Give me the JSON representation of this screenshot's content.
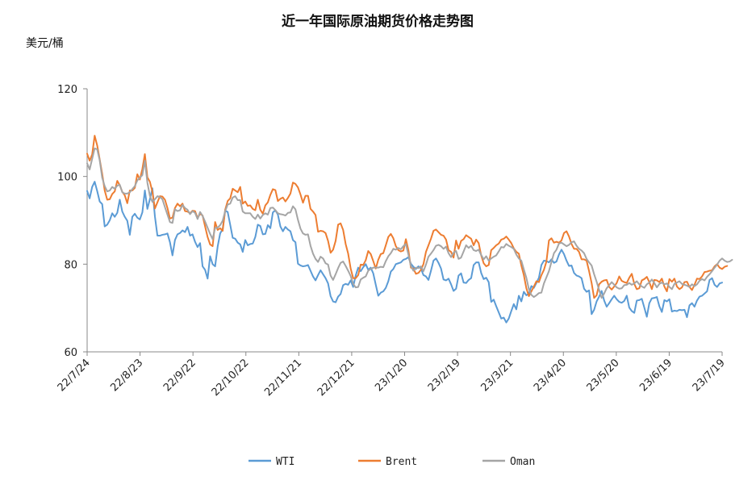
{
  "chart_data": {
    "type": "line",
    "title": "近一年国际原油期货价格走势图",
    "ylabel": "美元/桶",
    "xlabel": "",
    "ylim": [
      60,
      120
    ],
    "yticks": [
      60,
      80,
      100,
      120
    ],
    "x_ticks": [
      "22/7/24",
      "22/8/23",
      "22/9/22",
      "22/10/22",
      "22/11/21",
      "22/12/21",
      "23/1/20",
      "23/2/19",
      "23/3/21",
      "23/4/20",
      "23/5/20",
      "23/6/19",
      "23/7/19"
    ],
    "grid": false,
    "legend": "bottom",
    "colors": {
      "WTI": "#5b9bd5",
      "Brent": "#ed7d31",
      "Oman": "#a5a5a5"
    },
    "series": [
      {
        "name": "WTI",
        "values": [
          96.7,
          95,
          97.6,
          98.8,
          96.7,
          94.3,
          93.7,
          88.6,
          89,
          90,
          91.6,
          90.8,
          91.7,
          94.7,
          92,
          90.8,
          89.9,
          86.7,
          90.8,
          91.5,
          90.6,
          90.2,
          91.8,
          96.8,
          92.6,
          94.8,
          97.3,
          90.9,
          86.5,
          86.5,
          86.7,
          86.8,
          87,
          85,
          82,
          85.5,
          86.8,
          87.1,
          87.7,
          87.3,
          88.5,
          86.5,
          86.8,
          85.1,
          83.9,
          84.8,
          79.5,
          78.7,
          76.7,
          81.8,
          80,
          79.5,
          84,
          87,
          88,
          92.2,
          91.9,
          89,
          86,
          85.8,
          84.9,
          84.5,
          82.8,
          85.5,
          84.3,
          84.6,
          84.7,
          86.2,
          89,
          88.7,
          86.8,
          86.9,
          88.9,
          88.2,
          91.8,
          92.3,
          91.3,
          88.6,
          87.5,
          88.5,
          87.9,
          87.5,
          85.5,
          85,
          80.1,
          79.7,
          79.5,
          79.6,
          79.8,
          78.5,
          77.2,
          76.3,
          77.5,
          78.6,
          77.7,
          76.8,
          75.6,
          72.7,
          71.5,
          71.3,
          72.6,
          73.2,
          75.2,
          75.5,
          75.3,
          76.3,
          74.8,
          77.4,
          79.2,
          78.4,
          79.3,
          80,
          78.7,
          79.2,
          77.9,
          75.3,
          72.8,
          73.5,
          73.8,
          74.6,
          76.1,
          78.3,
          78.9,
          80,
          80.2,
          80.4,
          81,
          81.2,
          81.6,
          80.1,
          79.4,
          78.9,
          79.5,
          79,
          77.5,
          77.2,
          76.4,
          78.5,
          80.8,
          81.3,
          80.3,
          79,
          76.5,
          76.3,
          76.7,
          75.4,
          73.9,
          74.4,
          77.4,
          77.9,
          75.8,
          75.7,
          76.4,
          76.8,
          79.8,
          80.4,
          80.4,
          78,
          76.6,
          76.9,
          75.9,
          71.4,
          71.9,
          70.4,
          69,
          67.6,
          67.8,
          66.7,
          67.6,
          69.3,
          70.9,
          69.7,
          72.8,
          71.5,
          73.7,
          72.9,
          73.3,
          75,
          74.6,
          75.7,
          76.9,
          79.8,
          80.8,
          80.7,
          80.4,
          81.1,
          80.3,
          80.6,
          82.2,
          83.3,
          82.3,
          80.8,
          79.6,
          79.7,
          78,
          77.4,
          77.2,
          76.8,
          74.4,
          73.7,
          74,
          68.6,
          69.6,
          71.5,
          72.6,
          73.9,
          71.7,
          70.3,
          71.1,
          72,
          72.8,
          72,
          71.4,
          71.2,
          71.6,
          72.8,
          70.1,
          69.3,
          68.9,
          71.7,
          71.8,
          72.1,
          70.1,
          68,
          71.1,
          72.2,
          72.3,
          72.5,
          70.4,
          69.1,
          71.8,
          71.5,
          72,
          69.2,
          69.4,
          69.3,
          69.6,
          69.5,
          69.6,
          67.9,
          70.6,
          71.1,
          70.3,
          71.7,
          72.6,
          72.8,
          73.3,
          73.8,
          76.4,
          76.8,
          75.3,
          74.8,
          75.6,
          75.8
        ]
      },
      {
        "name": "Brent",
        "values": [
          105.2,
          103.6,
          105,
          109.3,
          107.1,
          103.9,
          100.6,
          96.8,
          94.7,
          94.8,
          96,
          96.6,
          99,
          98,
          96.5,
          95.7,
          93.9,
          96.8,
          96.8,
          97.4,
          100.5,
          99.3,
          101.7,
          105.1,
          99.8,
          98.8,
          96.5,
          92.7,
          94.1,
          95.5,
          95.4,
          94.7,
          92.8,
          90.4,
          90.6,
          92.8,
          93.8,
          93.2,
          93.8,
          92.1,
          92,
          91.6,
          92.2,
          92.1,
          90.5,
          91.5,
          91.1,
          88.6,
          86.2,
          84.5,
          84.1,
          89.6,
          87.8,
          88.2,
          87.6,
          92.4,
          94.4,
          95,
          97.2,
          96.8,
          96.4,
          97.6,
          93.8,
          94.3,
          93.3,
          93.4,
          92.6,
          92.3,
          94.7,
          92.4,
          91.5,
          93.4,
          94.1,
          95.8,
          97.1,
          96.9,
          94.4,
          94.9,
          95.2,
          94.3,
          95.1,
          96.1,
          98.6,
          98.3,
          97.5,
          95.9,
          94,
          95.6,
          95.6,
          92.6,
          92,
          91.2,
          87.4,
          87.6,
          87.5,
          87.1,
          85.3,
          82.6,
          83.3,
          85.3,
          89,
          89.3,
          87.8,
          84.6,
          82.4,
          79,
          76.8,
          76.8,
          77.5,
          79.9,
          79.8,
          80.9,
          83,
          82.3,
          80.7,
          79,
          81,
          82.3,
          82.5,
          84.3,
          86.2,
          86.9,
          85.9,
          84.1,
          83.2,
          82.9,
          83.1,
          85.7,
          83.2,
          79.2,
          79,
          77.8,
          78,
          78.7,
          80,
          82.8,
          84.3,
          85.8,
          87.6,
          87.9,
          87.3,
          86.7,
          86.5,
          85.6,
          83.2,
          82.8,
          81.5,
          85.4,
          83.5,
          85.3,
          85.7,
          86.6,
          86.2,
          85.8,
          84.3,
          85.6,
          84.8,
          82,
          80.2,
          79.5,
          79.8,
          83.2,
          83.7,
          84.3,
          84.7,
          85.6,
          85.8,
          86.3,
          85.6,
          84.8,
          83.6,
          82.8,
          82.4,
          79.7,
          77.5,
          74.5,
          72.7,
          73.8,
          74.9,
          76.1,
          75.9,
          77.5,
          78.7,
          80.6,
          85.4,
          85.9,
          84.9,
          85.1,
          84.9,
          85.4,
          87.1,
          87.5,
          86.3,
          84.6,
          83.5,
          83.5,
          82.8,
          81.1,
          81.1,
          80.8,
          78.4,
          75.7,
          72.3,
          72.9,
          75.4,
          76,
          76.3,
          76.4,
          74.8,
          74.2,
          74.9,
          75.7,
          77.2,
          76.2,
          75.9,
          75.7,
          76.9,
          77.8,
          75.5,
          74.3,
          74.5,
          76.3,
          76.6,
          77.1,
          75.9,
          74.3,
          76.4,
          76.3,
          75.9,
          76.7,
          74.9,
          73.8,
          76.6,
          76,
          76.7,
          74.9,
          74.3,
          74.7,
          75.9,
          76,
          74.8,
          74.1,
          75.3,
          76.7,
          76.6,
          77.2,
          78.2,
          78.3,
          78.5,
          78.6,
          79.5,
          80,
          79.2,
          78.9,
          79.4,
          79.6
        ]
      },
      {
        "name": "Oman",
        "values": [
          103,
          101.6,
          104,
          106.4,
          106.2,
          103.7,
          99.7,
          97.8,
          96.6,
          96.8,
          97.6,
          97.2,
          97.9,
          98.1,
          96.4,
          96.1,
          96.1,
          96.4,
          97.1,
          97.8,
          99.1,
          99.7,
          100.3,
          103.6,
          98.6,
          95.6,
          94.2,
          94.8,
          95.5,
          95.3,
          94.8,
          93,
          91.3,
          89.6,
          89.4,
          92.5,
          92.1,
          92.3,
          93.5,
          92.8,
          92.4,
          91.4,
          92.1,
          91.7,
          90.3,
          91.9,
          91,
          89.7,
          88.3,
          86.9,
          85.7,
          88.3,
          88.3,
          88.9,
          89.9,
          92.1,
          93.6,
          93.8,
          95.2,
          95.5,
          94.6,
          94.6,
          92,
          91.6,
          91.6,
          91.6,
          90.8,
          90.3,
          91.3,
          90.4,
          91.2,
          91.6,
          91.3,
          92.8,
          92.9,
          92.3,
          91.6,
          91.4,
          91.3,
          91.1,
          91.7,
          91.8,
          93.2,
          92.5,
          90.1,
          88.1,
          87,
          86.7,
          86.8,
          84.2,
          82.4,
          81.2,
          80.5,
          81.7,
          81.3,
          80.2,
          79.9,
          77.4,
          76.4,
          77.7,
          79.1,
          80.3,
          80.6,
          79.6,
          78.5,
          77.3,
          75.5,
          74.7,
          74.8,
          76.5,
          76.9,
          77.2,
          78.5,
          78.9,
          79.2,
          79.2,
          79.2,
          79.4,
          79.3,
          80.7,
          81.8,
          82.5,
          83.5,
          83.3,
          83.7,
          83.4,
          84.1,
          84.6,
          82.2,
          79.6,
          78.5,
          79.2,
          79.1,
          79.5,
          78.4,
          79.9,
          81.7,
          82.4,
          83.2,
          84.2,
          84.4,
          84.1,
          83.5,
          84,
          82.5,
          81.6,
          82.6,
          83,
          81.2,
          81.5,
          82.9,
          84.3,
          83.7,
          84.2,
          83.2,
          83,
          83.3,
          82.1,
          81.1,
          81.8,
          80.8,
          81.3,
          81.7,
          82,
          82.9,
          83.9,
          83.8,
          84.6,
          84.2,
          83.9,
          83.5,
          82.2,
          81.3,
          80.8,
          78.8,
          76.9,
          74.3,
          73,
          72.5,
          72.9,
          73.4,
          73.5,
          75.6,
          77,
          78.4,
          80.5,
          82.5,
          83.3,
          84.7,
          84.9,
          84.5,
          84.1,
          84.4,
          85,
          85.2,
          84.2,
          83.5,
          83.1,
          82.5,
          81.2,
          80.4,
          79.7,
          77.7,
          76,
          74.1,
          72.3,
          73.3,
          74.5,
          75.2,
          75.9,
          75.3,
          74.7,
          74.4,
          74.5,
          75.2,
          75.3,
          75.7,
          75.3,
          75.6,
          76.1,
          75.4,
          74.9,
          74.6,
          75.4,
          75.8,
          76.5,
          75.7,
          74.7,
          75.5,
          75.8,
          75.4,
          75.6,
          74.8,
          74.3,
          75.5,
          75.8,
          76.1,
          75.5,
          75.3,
          75.1,
          74.8,
          75.4,
          75,
          75.4,
          76.2,
          76.6,
          76.3,
          77.1,
          77.7,
          78.4,
          79.2,
          79.9,
          80.8,
          81.3,
          80.8,
          80.5,
          80.6,
          81
        ]
      }
    ]
  }
}
